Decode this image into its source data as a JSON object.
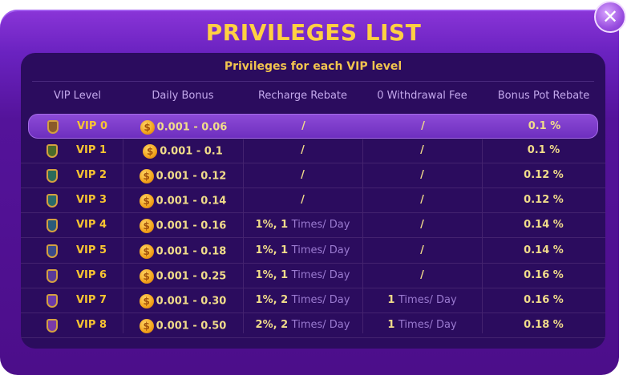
{
  "title": "PRIVILEGES LIST",
  "close_icon": "close-icon",
  "subtitle": "Privileges for each VIP level",
  "headers": [
    "VIP Level",
    "Daily Bonus",
    "Recharge Rebate",
    "0 Withdrawal Fee",
    "Bonus Pot Rebate"
  ],
  "selected_level": "VIP 0",
  "times_suffix": "Times/ Day",
  "rows": [
    {
      "level": "VIP 0",
      "bonus": "0.001 - 0.06",
      "recharge": "/",
      "recharge_suffix": "",
      "withdraw": "/",
      "withdraw_suffix": "",
      "pot": "0.1 %",
      "shield": "#8a5a2a"
    },
    {
      "level": "VIP 1",
      "bonus": "0.001 - 0.1",
      "recharge": "/",
      "recharge_suffix": "",
      "withdraw": "/",
      "withdraw_suffix": "",
      "pot": "0.1 %",
      "shield": "#4a6a2a"
    },
    {
      "level": "VIP 2",
      "bonus": "0.001 - 0.12",
      "recharge": "/",
      "recharge_suffix": "",
      "withdraw": "/",
      "withdraw_suffix": "",
      "pot": "0.12 %",
      "shield": "#2a6a5a"
    },
    {
      "level": "VIP 3",
      "bonus": "0.001 - 0.14",
      "recharge": "/",
      "recharge_suffix": "",
      "withdraw": "/",
      "withdraw_suffix": "",
      "pot": "0.12 %",
      "shield": "#2a6a6a"
    },
    {
      "level": "VIP 4",
      "bonus": "0.001 - 0.16",
      "recharge": "1%, 1",
      "recharge_suffix": "Times/ Day",
      "withdraw": "/",
      "withdraw_suffix": "",
      "pot": "0.14 %",
      "shield": "#2a5a7a"
    },
    {
      "level": "VIP 5",
      "bonus": "0.001 - 0.18",
      "recharge": "1%, 1",
      "recharge_suffix": "Times/ Day",
      "withdraw": "/",
      "withdraw_suffix": "",
      "pot": "0.14 %",
      "shield": "#3a4a8a"
    },
    {
      "level": "VIP 6",
      "bonus": "0.001 - 0.25",
      "recharge": "1%, 1",
      "recharge_suffix": "Times/ Day",
      "withdraw": "/",
      "withdraw_suffix": "",
      "pot": "0.16 %",
      "shield": "#5a3a9a"
    },
    {
      "level": "VIP 7",
      "bonus": "0.001 - 0.30",
      "recharge": "1%, 2",
      "recharge_suffix": "Times/ Day",
      "withdraw": "1",
      "withdraw_suffix": "Times/ Day",
      "pot": "0.16 %",
      "shield": "#6a3aaa"
    },
    {
      "level": "VIP 8",
      "bonus": "0.001 - 0.50",
      "recharge": "2%, 2",
      "recharge_suffix": "Times/ Day",
      "withdraw": "1",
      "withdraw_suffix": "Times/ Day",
      "pot": "0.18 %",
      "shield": "#7a3aaa"
    }
  ],
  "colors": {
    "accent": "#ffd042",
    "frame": "#54139a",
    "panel": "#2b0c5e"
  }
}
